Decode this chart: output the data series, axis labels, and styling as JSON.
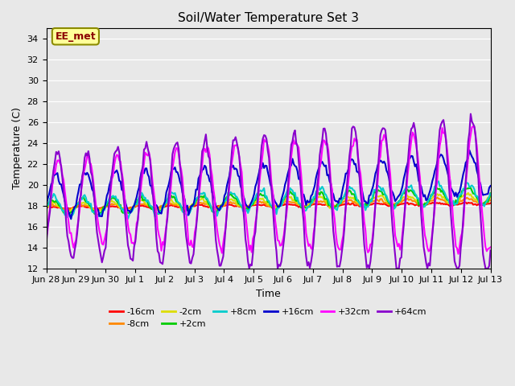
{
  "title": "Soil/Water Temperature Set 3",
  "xlabel": "Time",
  "ylabel": "Temperature (C)",
  "ylim": [
    12,
    35
  ],
  "yticks": [
    12,
    14,
    16,
    18,
    20,
    22,
    24,
    26,
    28,
    30,
    32,
    34
  ],
  "background_color": "#e8e8e8",
  "annotation_text": "EE_met",
  "annotation_bg": "#ffff99",
  "annotation_border": "#8b8b00",
  "annotation_text_color": "#8b0000",
  "series": {
    "-16cm": {
      "color": "#ff0000",
      "lw": 1.5
    },
    "-8cm": {
      "color": "#ff8800",
      "lw": 1.5
    },
    "-2cm": {
      "color": "#dddd00",
      "lw": 1.5
    },
    "+2cm": {
      "color": "#00cc00",
      "lw": 1.5
    },
    "+8cm": {
      "color": "#00cccc",
      "lw": 1.5
    },
    "+16cm": {
      "color": "#0000cc",
      "lw": 1.5
    },
    "+32cm": {
      "color": "#ff00ff",
      "lw": 1.5
    },
    "+64cm": {
      "color": "#8800cc",
      "lw": 1.5
    }
  },
  "xtick_labels": [
    "Jun 28",
    "Jun 29",
    "Jun 30",
    "Jul 1",
    "Jul 2",
    "Jul 3",
    "Jul 4",
    "Jul 5",
    "Jul 6",
    "Jul 7",
    "Jul 8",
    "Jul 9",
    "Jul 10",
    "Jul 11",
    "Jul 12",
    "Jul 13"
  ],
  "n_days": 15,
  "pts_per_day": 24
}
